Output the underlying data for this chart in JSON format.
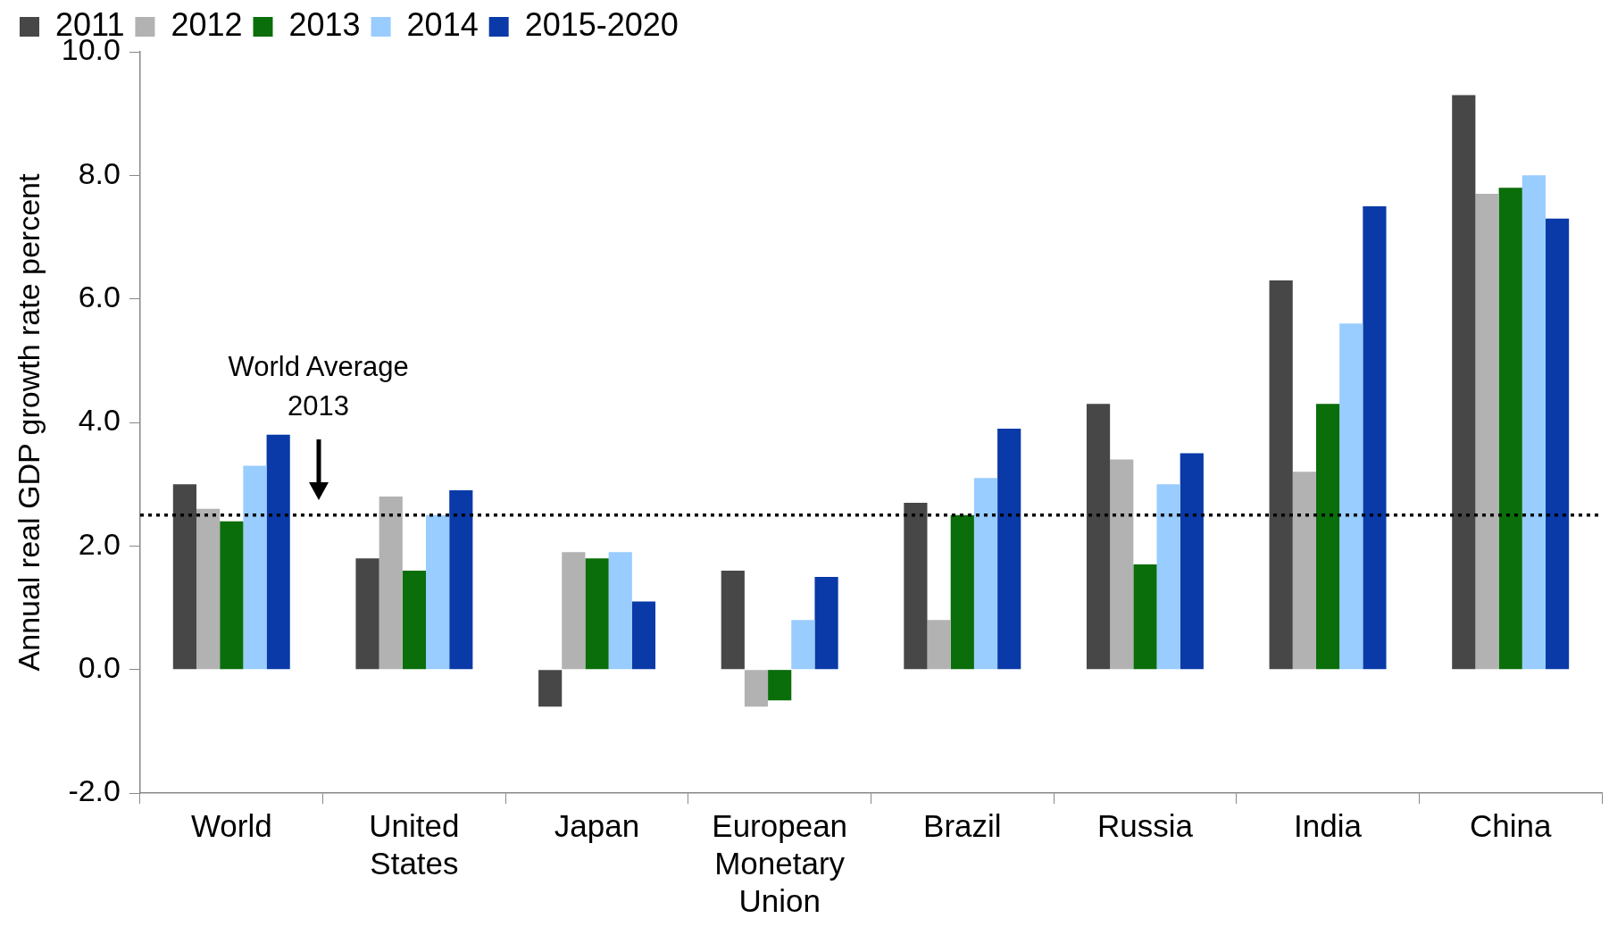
{
  "chart_data": {
    "type": "bar",
    "ylabel": "Annual real GDP growth rate percent",
    "categories": [
      "World",
      "United States",
      "Japan",
      "European Monetary Union",
      "Brazil",
      "Russia",
      "India",
      "China"
    ],
    "series": [
      {
        "name": "2011",
        "color": "#474747",
        "values": [
          3.0,
          1.8,
          -0.6,
          1.6,
          2.7,
          4.3,
          6.3,
          9.3
        ]
      },
      {
        "name": "2012",
        "color": "#b2b2b2",
        "values": [
          2.6,
          2.8,
          1.9,
          -0.6,
          0.8,
          3.4,
          3.2,
          7.7
        ]
      },
      {
        "name": "2013",
        "color": "#0a6e0a",
        "values": [
          2.4,
          1.6,
          1.8,
          -0.5,
          2.5,
          1.7,
          4.3,
          7.8
        ]
      },
      {
        "name": "2014",
        "color": "#99ccff",
        "values": [
          3.3,
          2.5,
          1.9,
          0.8,
          3.1,
          3.0,
          5.6,
          8.0
        ]
      },
      {
        "name": "2015-2020",
        "color": "#0a3aa8",
        "values": [
          3.8,
          2.9,
          1.1,
          1.5,
          3.9,
          3.5,
          7.5,
          7.3
        ]
      }
    ],
    "ylim": [
      -2,
      10
    ],
    "yticks": [
      {
        "value": -2,
        "label": "-2.0"
      },
      {
        "value": 0,
        "label": "0.0"
      },
      {
        "value": 2,
        "label": "2.0"
      },
      {
        "value": 4,
        "label": "4.0"
      },
      {
        "value": 6,
        "label": "6.0"
      },
      {
        "value": 8,
        "label": "8.0"
      },
      {
        "value": 10,
        "label": "10.0"
      }
    ],
    "ref_lines": [
      {
        "axis": "y",
        "value": 2.5,
        "color": "#000000",
        "line_style": "dotted"
      }
    ],
    "annotations": [
      "World Average 2013"
    ],
    "grid": false,
    "legend": "top left"
  }
}
